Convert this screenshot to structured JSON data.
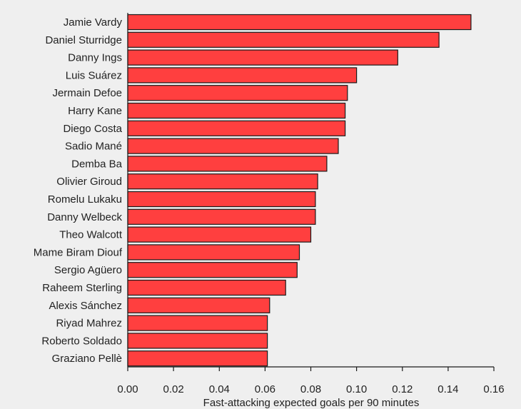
{
  "chart_data": {
    "type": "bar",
    "orientation": "horizontal",
    "categories": [
      "Jamie Vardy",
      "Daniel Sturridge",
      "Danny Ings",
      "Luis Suárez",
      "Jermain Defoe",
      "Harry Kane",
      "Diego Costa",
      "Sadio Mané",
      "Demba Ba",
      "Olivier Giroud",
      "Romelu Lukaku",
      "Danny Welbeck",
      "Theo Walcott",
      "Mame Biram Diouf",
      "Sergio Agüero",
      "Raheem Sterling",
      "Alexis Sánchez",
      "Riyad Mahrez",
      "Roberto Soldado",
      "Graziano Pellè"
    ],
    "values": [
      0.15,
      0.136,
      0.118,
      0.1,
      0.096,
      0.095,
      0.095,
      0.092,
      0.087,
      0.083,
      0.082,
      0.082,
      0.08,
      0.075,
      0.074,
      0.069,
      0.062,
      0.061,
      0.061,
      0.061
    ],
    "title": "",
    "xlabel": "Fast-attacking expected goals per 90 minutes",
    "ylabel": "",
    "xlim": [
      0,
      0.16
    ],
    "xticks": [
      "0.00",
      "0.02",
      "0.04",
      "0.06",
      "0.08",
      "0.10",
      "0.12",
      "0.14",
      "0.16"
    ],
    "bar_color": "#ff3f3f",
    "grid": false
  }
}
